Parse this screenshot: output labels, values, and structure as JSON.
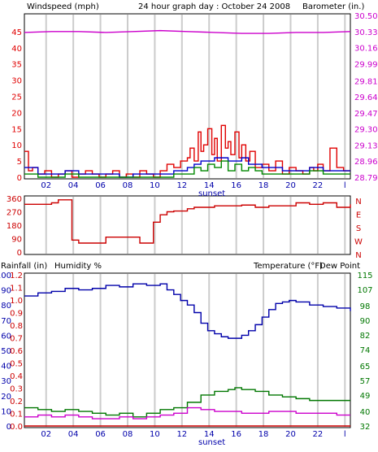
{
  "title": "24 hour graph day : October 24 2008",
  "colors": {
    "wind": "#e00000",
    "gust": "#0000cc",
    "avg": "#008800",
    "baro": "#cc00cc",
    "dir": "#cc0000",
    "humidity": "#0000aa",
    "temperature": "#007700",
    "dewpoint": "#cc00cc",
    "rain": "#cc0000",
    "grid": "#cccccc",
    "frame": "#000000"
  },
  "chart_data": [
    {
      "type": "line",
      "panel": "wind-baro",
      "left_label": "Windspeed (mph)",
      "right_label": "Barometer (in.)",
      "x_ticks": [
        "02",
        "04",
        "06",
        "08",
        "10",
        "12",
        "14",
        "16",
        "18",
        "20",
        "22",
        "l"
      ],
      "x_note": "sunset",
      "left_ticks": [
        "0",
        "5",
        "10",
        "15",
        "20",
        "25",
        "30",
        "35",
        "40",
        "45"
      ],
      "left_range": [
        0,
        50
      ],
      "right_ticks": [
        "28.79",
        "28.96",
        "29.13",
        "29.30",
        "29.47",
        "29.64",
        "29.81",
        "29.99",
        "30.16",
        "30.33",
        "30.50"
      ],
      "right_range": [
        28.79,
        30.5
      ],
      "series": [
        {
          "key": "windspeed",
          "color_key": "wind",
          "x": [
            0,
            0.3,
            0.6,
            1,
            1.5,
            2,
            2.5,
            3,
            3.5,
            4,
            4.5,
            5,
            5.5,
            6,
            6.5,
            7,
            7.5,
            8,
            8.5,
            9,
            9.5,
            10,
            10.5,
            11,
            11.5,
            12,
            12.2,
            12.5,
            12.8,
            13,
            13.2,
            13.5,
            13.8,
            14,
            14.2,
            14.5,
            14.8,
            15,
            15.2,
            15.5,
            15.8,
            16,
            16.3,
            16.6,
            17,
            17.5,
            18,
            18.5,
            19,
            19.5,
            20,
            20.5,
            21,
            21.3,
            21.6,
            22,
            22.5,
            23,
            23.5,
            24
          ],
          "y": [
            8,
            2,
            3,
            1,
            2,
            0,
            1,
            2,
            0,
            1,
            2,
            1,
            0,
            1,
            2,
            0,
            1,
            0,
            2,
            1,
            0,
            2,
            4,
            3,
            5,
            6,
            9,
            5,
            14,
            8,
            10,
            15,
            7,
            12,
            5,
            16,
            9,
            11,
            7,
            14,
            6,
            10,
            5,
            8,
            3,
            4,
            2,
            5,
            1,
            3,
            2,
            1,
            3,
            2,
            4,
            2,
            9,
            3,
            2,
            2
          ]
        },
        {
          "key": "gust",
          "color_key": "gust",
          "x": [
            0,
            1,
            2,
            3,
            4,
            5,
            6,
            7,
            8,
            9,
            10,
            11,
            12,
            12.5,
            13,
            13.5,
            14,
            14.5,
            15,
            15.5,
            16,
            16.5,
            17,
            17.5,
            18,
            19,
            20,
            21,
            22,
            23,
            24
          ],
          "y": [
            3,
            1,
            1,
            2,
            1,
            1,
            1,
            0,
            1,
            1,
            1,
            2,
            3,
            4,
            5,
            5,
            6,
            6,
            5,
            5,
            6,
            4,
            4,
            3,
            3,
            2,
            2,
            3,
            2,
            2,
            2
          ]
        },
        {
          "key": "average",
          "color_key": "avg",
          "x": [
            0,
            1,
            2,
            3,
            4,
            5,
            6,
            7,
            8,
            9,
            10,
            11,
            12,
            12.5,
            13,
            13.5,
            14,
            14.5,
            15,
            15.5,
            16,
            16.5,
            17,
            17.5,
            18,
            19,
            20,
            21,
            22,
            23,
            24
          ],
          "y": [
            1,
            0,
            0,
            1,
            0,
            0,
            0,
            0,
            0,
            0,
            0,
            1,
            1,
            3,
            2,
            4,
            3,
            5,
            2,
            4,
            2,
            3,
            2,
            1,
            1,
            1,
            1,
            2,
            1,
            1,
            1
          ]
        },
        {
          "key": "barometer",
          "color_key": "baro",
          "axis": "right",
          "x": [
            0,
            2,
            4,
            6,
            8,
            10,
            12,
            14,
            16,
            18,
            20,
            22,
            24
          ],
          "y": [
            30.32,
            30.33,
            30.33,
            30.32,
            30.33,
            30.34,
            30.33,
            30.32,
            30.31,
            30.31,
            30.32,
            30.32,
            30.33
          ]
        }
      ]
    },
    {
      "type": "line",
      "panel": "wind-direction",
      "left_ticks": [
        "0",
        "90",
        "180",
        "270",
        "360"
      ],
      "left_range": [
        0,
        360
      ],
      "right_ticks": [
        "N",
        "W",
        "S",
        "E",
        "N"
      ],
      "series": [
        {
          "key": "direction",
          "color_key": "dir",
          "x": [
            0,
            1.5,
            2,
            2.5,
            3,
            3.5,
            4,
            5,
            6,
            7,
            8,
            8.5,
            9,
            9.5,
            10,
            10.5,
            11,
            12,
            12.5,
            13,
            14,
            15,
            16,
            17,
            18,
            19,
            20,
            21,
            22,
            23,
            24
          ],
          "y": [
            320,
            320,
            330,
            350,
            350,
            80,
            60,
            60,
            100,
            100,
            100,
            60,
            60,
            200,
            250,
            270,
            275,
            290,
            300,
            300,
            310,
            310,
            315,
            300,
            310,
            310,
            330,
            320,
            330,
            300,
            320
          ]
        }
      ]
    },
    {
      "type": "line",
      "panel": "rain-humidity-temp",
      "left_label_1": "Rainfall (in)",
      "left_label_2": "Humidity %",
      "right_label_1": "Temperature (°F)",
      "right_label_2": "Dew Point",
      "humidity_ticks": [
        "0",
        "10",
        "20",
        "30",
        "40",
        "50",
        "60",
        "70",
        "80",
        "90",
        "100"
      ],
      "humidity_range": [
        0,
        100
      ],
      "rain_ticks": [
        "0.0",
        "0.1",
        "0.2",
        "0.3",
        "0.4",
        "0.5",
        "0.6",
        "0.7",
        "0.8",
        "0.9",
        "1.0",
        "1.1",
        "1.2"
      ],
      "rain_range": [
        0,
        1.2
      ],
      "temp_ticks": [
        "32",
        "40",
        "49",
        "57",
        "65",
        "74",
        "82",
        "90",
        "98",
        "107",
        "115"
      ],
      "temp_range": [
        32,
        115
      ],
      "series": [
        {
          "key": "humidity",
          "color_key": "humidity",
          "x": [
            0,
            1,
            2,
            3,
            4,
            5,
            6,
            7,
            8,
            9,
            10,
            10.5,
            11,
            11.5,
            12,
            12.5,
            13,
            13.5,
            14,
            14.5,
            15,
            15.5,
            16,
            16.5,
            17,
            17.5,
            18,
            18.5,
            19,
            19.5,
            20,
            21,
            22,
            23,
            24
          ],
          "y": [
            86,
            88,
            89,
            91,
            90,
            91,
            93,
            92,
            94,
            93,
            94,
            90,
            87,
            83,
            80,
            75,
            68,
            63,
            61,
            59,
            58,
            58,
            60,
            63,
            67,
            72,
            77,
            81,
            82,
            83,
            82,
            80,
            79,
            78,
            76
          ]
        },
        {
          "key": "temperature",
          "color_key": "temperature",
          "axis": "temp",
          "x": [
            0,
            1,
            2,
            3,
            4,
            5,
            6,
            7,
            8,
            9,
            10,
            11,
            12,
            13,
            14,
            15,
            15.5,
            16,
            17,
            18,
            19,
            20,
            21,
            22,
            23,
            24
          ],
          "y": [
            42,
            41,
            40,
            41,
            40,
            39,
            38,
            39,
            37,
            39,
            41,
            42,
            45,
            49,
            51,
            52,
            53,
            52,
            51,
            49,
            48,
            47,
            46,
            46,
            46,
            46
          ]
        },
        {
          "key": "dewpoint",
          "color_key": "dewpoint",
          "axis": "temp",
          "x": [
            0,
            1,
            2,
            3,
            4,
            5,
            6,
            7,
            8,
            9,
            10,
            11,
            12,
            13,
            14,
            15,
            16,
            17,
            18,
            19,
            20,
            21,
            22,
            23,
            24
          ],
          "y": [
            37,
            38,
            37,
            38,
            37,
            36,
            36,
            37,
            36,
            37,
            38,
            39,
            42,
            41,
            40,
            40,
            39,
            39,
            40,
            40,
            39,
            39,
            39,
            38,
            38
          ]
        },
        {
          "key": "rainfall",
          "color_key": "rain",
          "x": [
            0,
            24
          ],
          "y": [
            0,
            0
          ]
        }
      ]
    }
  ]
}
